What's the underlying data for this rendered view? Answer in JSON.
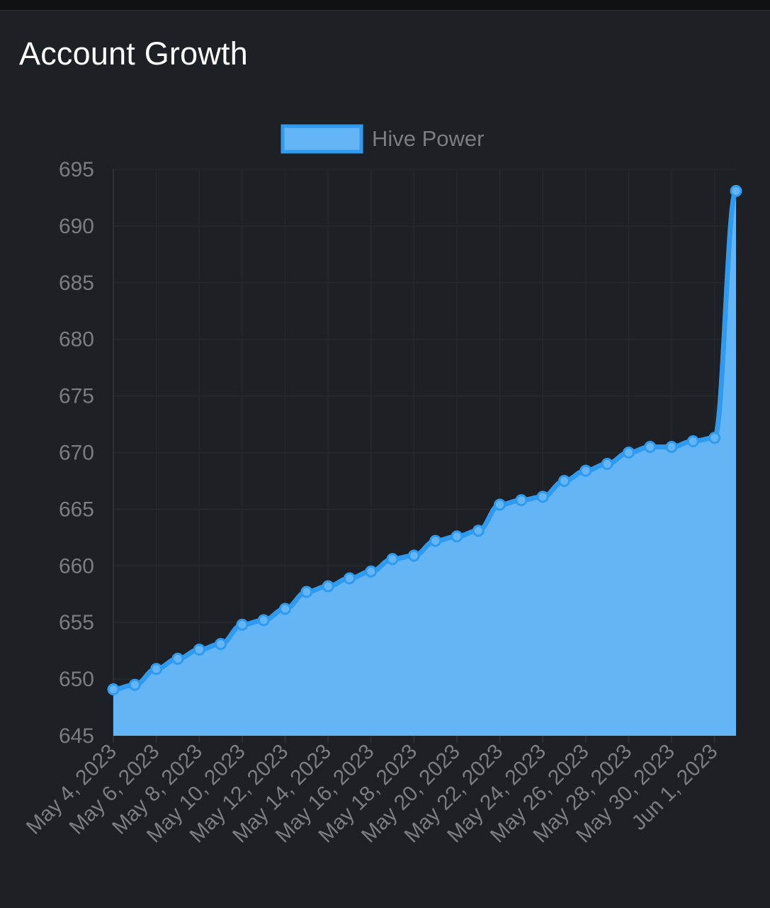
{
  "title": "Account Growth",
  "chart_data": {
    "type": "area",
    "title": "Account Growth",
    "xlabel": "",
    "ylabel": "",
    "ylim": [
      645,
      695
    ],
    "yticks": [
      645,
      650,
      655,
      660,
      665,
      670,
      675,
      680,
      685,
      690,
      695
    ],
    "x": [
      "May 4, 2023",
      "May 5, 2023",
      "May 6, 2023",
      "May 7, 2023",
      "May 8, 2023",
      "May 9, 2023",
      "May 10, 2023",
      "May 11, 2023",
      "May 12, 2023",
      "May 13, 2023",
      "May 14, 2023",
      "May 15, 2023",
      "May 16, 2023",
      "May 17, 2023",
      "May 18, 2023",
      "May 19, 2023",
      "May 20, 2023",
      "May 21, 2023",
      "May 22, 2023",
      "May 23, 2023",
      "May 24, 2023",
      "May 25, 2023",
      "May 26, 2023",
      "May 27, 2023",
      "May 28, 2023",
      "May 29, 2023",
      "May 30, 2023",
      "May 31, 2023",
      "Jun 1, 2023",
      "Jun 2, 2023"
    ],
    "x_tick_labels": [
      "May 4, 2023",
      "May 6, 2023",
      "May 8, 2023",
      "May 10, 2023",
      "May 12, 2023",
      "May 14, 2023",
      "May 16, 2023",
      "May 18, 2023",
      "May 20, 2023",
      "May 22, 2023",
      "May 24, 2023",
      "May 26, 2023",
      "May 28, 2023",
      "May 30, 2023",
      "Jun 1, 2023"
    ],
    "series": [
      {
        "name": "Hive Power",
        "values": [
          649.1,
          649.5,
          650.9,
          651.8,
          652.6,
          653.1,
          654.8,
          655.2,
          656.2,
          657.7,
          658.2,
          658.9,
          659.5,
          660.6,
          660.9,
          662.2,
          662.6,
          663.1,
          665.4,
          665.8,
          666.1,
          667.5,
          668.4,
          669.0,
          670.0,
          670.5,
          670.5,
          671.0,
          671.3,
          693.1
        ]
      }
    ],
    "legend_position": "top-center",
    "grid": true,
    "colors": {
      "line": "#2f9bf0",
      "fill": "#64b5f6",
      "point": "#64b5f6"
    }
  }
}
